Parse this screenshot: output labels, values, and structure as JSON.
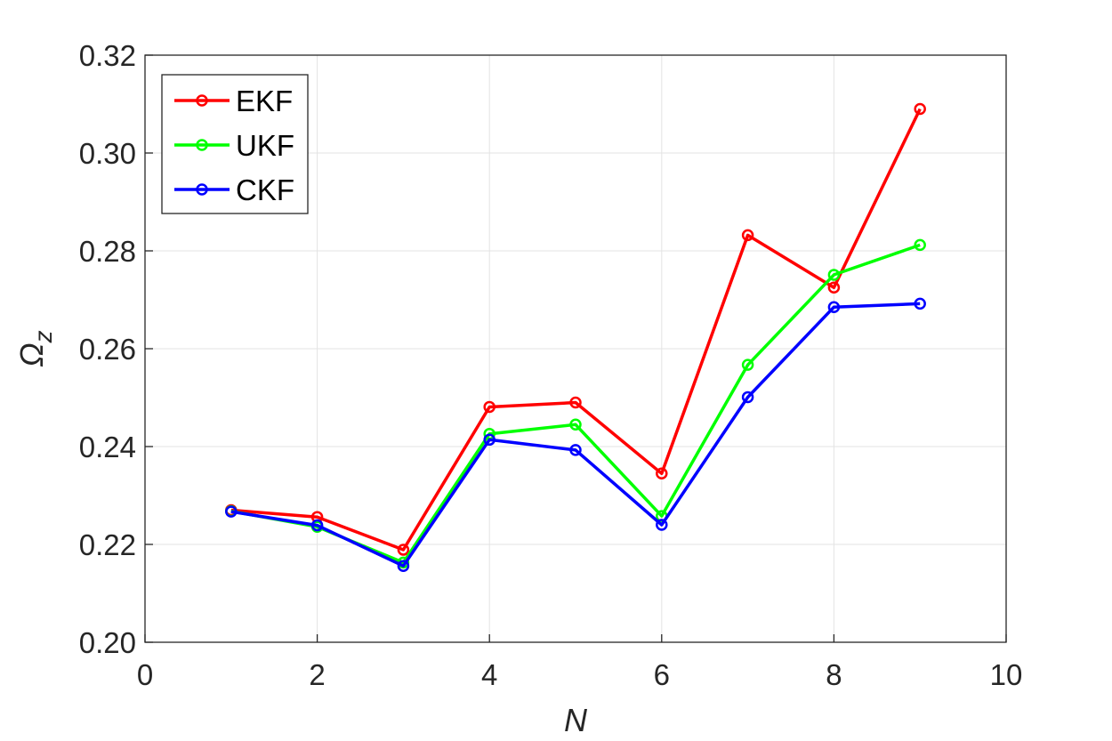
{
  "chart_data": {
    "type": "line",
    "title": "",
    "xlabel": "N",
    "ylabel": "Ω",
    "ylabel_subscript": "z",
    "xlim": [
      0,
      10
    ],
    "ylim": [
      0.2,
      0.32
    ],
    "xticks": [
      0,
      2,
      4,
      6,
      8,
      10
    ],
    "xtick_labels": [
      "0",
      "2",
      "4",
      "6",
      "8",
      "10"
    ],
    "yticks": [
      0.2,
      0.22,
      0.24,
      0.26,
      0.28,
      0.3,
      0.32
    ],
    "ytick_labels": [
      "0.20",
      "0.22",
      "0.24",
      "0.26",
      "0.28",
      "0.30",
      "0.32"
    ],
    "grid": true,
    "legend_position": "top-left",
    "marker": "circle",
    "x": [
      1,
      2,
      3,
      4,
      5,
      6,
      7,
      8,
      9
    ],
    "series": [
      {
        "name": "EKF",
        "color": "#ff0000",
        "values": [
          0.227,
          0.2256,
          0.2189,
          0.2481,
          0.249,
          0.2345,
          0.2832,
          0.2725,
          0.309
        ]
      },
      {
        "name": "UKF",
        "color": "#00ff00",
        "values": [
          0.2268,
          0.2236,
          0.2163,
          0.2426,
          0.2445,
          0.2258,
          0.2567,
          0.2751,
          0.2812
        ]
      },
      {
        "name": "CKF",
        "color": "#0000ff",
        "values": [
          0.2267,
          0.2239,
          0.2156,
          0.2414,
          0.2393,
          0.224,
          0.2501,
          0.2685,
          0.2692
        ]
      }
    ]
  }
}
